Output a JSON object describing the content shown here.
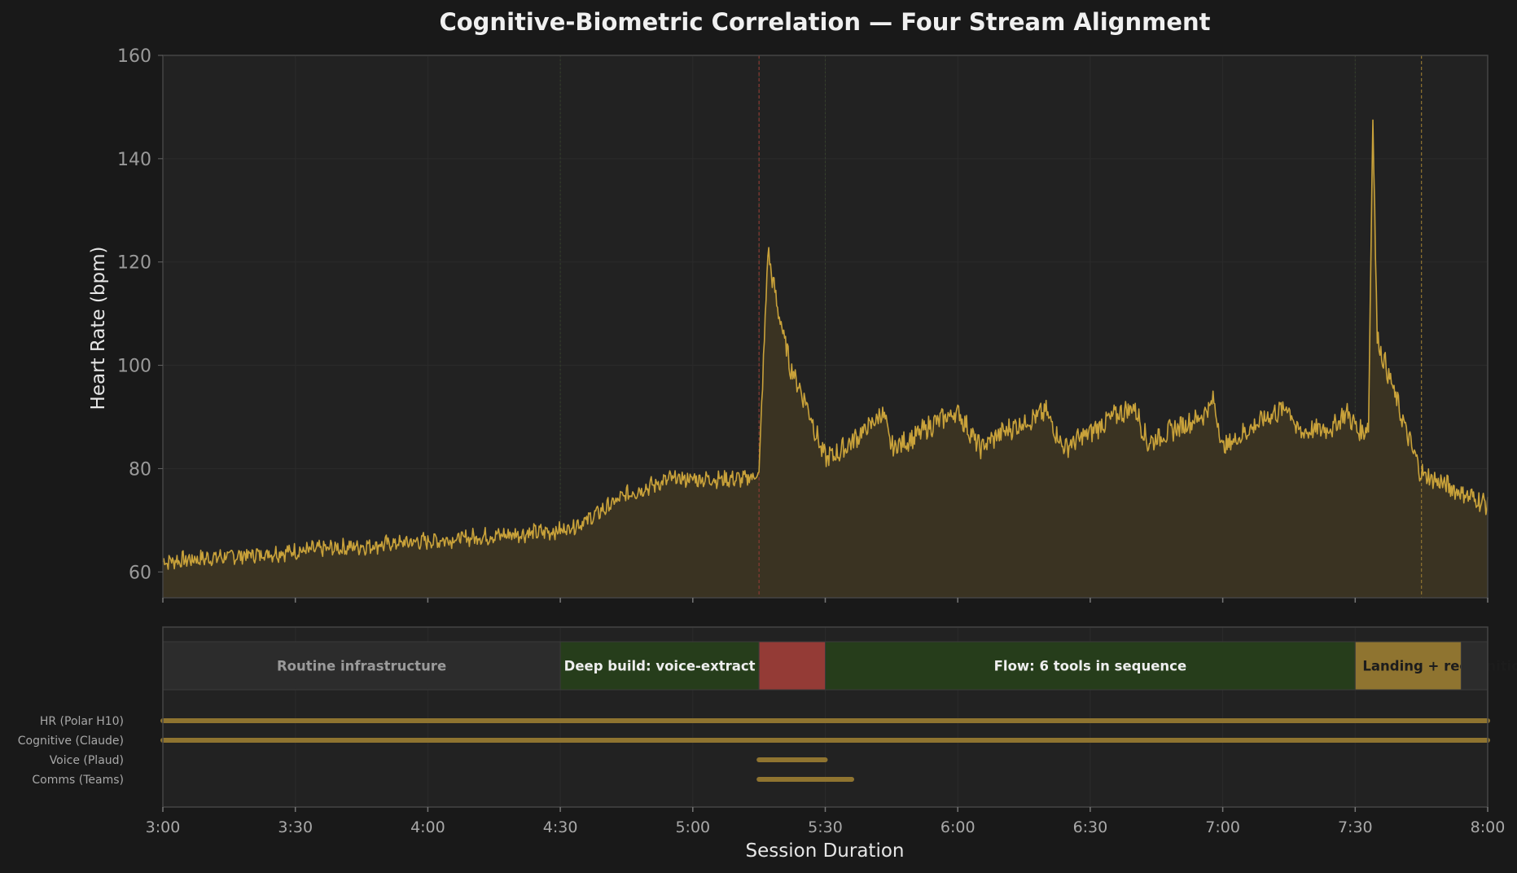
{
  "chart_data": {
    "type": "line",
    "title": "Cognitive-Biometric Correlation — Four Stream Alignment",
    "xlabel": "Session Duration",
    "ylabel": "Heart Rate (bpm)",
    "xlim": [
      "3:00",
      "8:00"
    ],
    "ylim": [
      55,
      160
    ],
    "y_ticks": [
      60,
      80,
      100,
      120,
      140,
      160
    ],
    "x_ticks": [
      "3:00",
      "3:30",
      "4:00",
      "4:30",
      "5:00",
      "5:30",
      "6:00",
      "6:30",
      "7:00",
      "7:30",
      "8:00"
    ],
    "grid": true,
    "colors": {
      "background": "#191919",
      "plot_bg": "#222222",
      "line": "#c9a23a",
      "fill": "#3a3322",
      "phase_routine": "#2c2c2c",
      "phase_deep": "#263d1b",
      "phase_spike": "#943b36",
      "phase_flow": "#263d1b",
      "phase_landing": "#8f7430",
      "stream_bar": "#8f7430"
    },
    "series": [
      {
        "values_anchor": [
          [
            "3:00",
            62
          ],
          [
            "3:15",
            63
          ],
          [
            "3:30",
            64
          ],
          [
            "3:45",
            65
          ],
          [
            "4:00",
            66
          ],
          [
            "4:15",
            67
          ],
          [
            "4:30",
            68
          ],
          [
            "4:36",
            70
          ],
          [
            "4:45",
            75
          ],
          [
            "4:55",
            78
          ],
          [
            "5:05",
            78
          ],
          [
            "5:12",
            78
          ],
          [
            "5:15",
            79
          ],
          [
            "5:17",
            122
          ],
          [
            "5:19",
            112
          ],
          [
            "5:22",
            100
          ],
          [
            "5:26",
            92
          ],
          [
            "5:29",
            84
          ],
          [
            "5:30",
            82
          ],
          [
            "5:33",
            83
          ],
          [
            "5:37",
            86
          ],
          [
            "5:41",
            89
          ],
          [
            "5:43",
            91
          ],
          [
            "5:45",
            84
          ],
          [
            "5:50",
            86
          ],
          [
            "5:55",
            89
          ],
          [
            "6:00",
            91
          ],
          [
            "6:05",
            84
          ],
          [
            "6:10",
            87
          ],
          [
            "6:15",
            89
          ],
          [
            "6:20",
            91
          ],
          [
            "6:24",
            84
          ],
          [
            "6:30",
            87
          ],
          [
            "6:35",
            90
          ],
          [
            "6:40",
            92
          ],
          [
            "6:43",
            85
          ],
          [
            "6:50",
            88
          ],
          [
            "6:55",
            90
          ],
          [
            "6:58",
            93
          ],
          [
            "7:00",
            84
          ],
          [
            "7:05",
            87
          ],
          [
            "7:10",
            90
          ],
          [
            "7:15",
            92
          ],
          [
            "7:17",
            87
          ],
          [
            "7:25",
            88
          ],
          [
            "7:28",
            91
          ],
          [
            "7:31",
            87
          ],
          [
            "7:33",
            88
          ],
          [
            "7:34",
            148
          ],
          [
            "7:35",
            105
          ],
          [
            "7:38",
            97
          ],
          [
            "7:42",
            86
          ],
          [
            "7:45",
            79
          ],
          [
            "7:50",
            77
          ],
          [
            "7:55",
            75
          ],
          [
            "8:00",
            73
          ]
        ]
      }
    ],
    "vlines": [
      {
        "x": "5:15",
        "color": "#8a3a33"
      },
      {
        "x": "7:45",
        "color": "#8f7430"
      }
    ],
    "phases": [
      {
        "label": "Routine infrastructure",
        "start": "3:00",
        "end": "4:30",
        "color": "#2c2c2c",
        "text_color": "#9a9a9a"
      },
      {
        "label": "Deep build: voice-extract",
        "start": "4:30",
        "end": "5:15",
        "color": "#263d1b",
        "text_color": "#eeeeee"
      },
      {
        "label": "",
        "start": "5:15",
        "end": "5:30",
        "color": "#943b36",
        "text_color": "#eeeeee"
      },
      {
        "label": "Flow: 6 tools in sequence",
        "start": "5:30",
        "end": "7:30",
        "color": "#263d1b",
        "text_color": "#eeeeee"
      },
      {
        "label": "Landing + recognition",
        "start": "7:30",
        "end": "7:54",
        "color": "#8f7430",
        "text_color": "#1c1c1c"
      }
    ],
    "streams": [
      {
        "label": "HR (Polar H10)",
        "start": "3:00",
        "end": "8:00"
      },
      {
        "label": "Cognitive (Claude)",
        "start": "3:00",
        "end": "8:00"
      },
      {
        "label": "Voice (Plaud)",
        "start": "5:15",
        "end": "5:30"
      },
      {
        "label": "Comms (Teams)",
        "start": "5:15",
        "end": "5:36"
      }
    ]
  }
}
